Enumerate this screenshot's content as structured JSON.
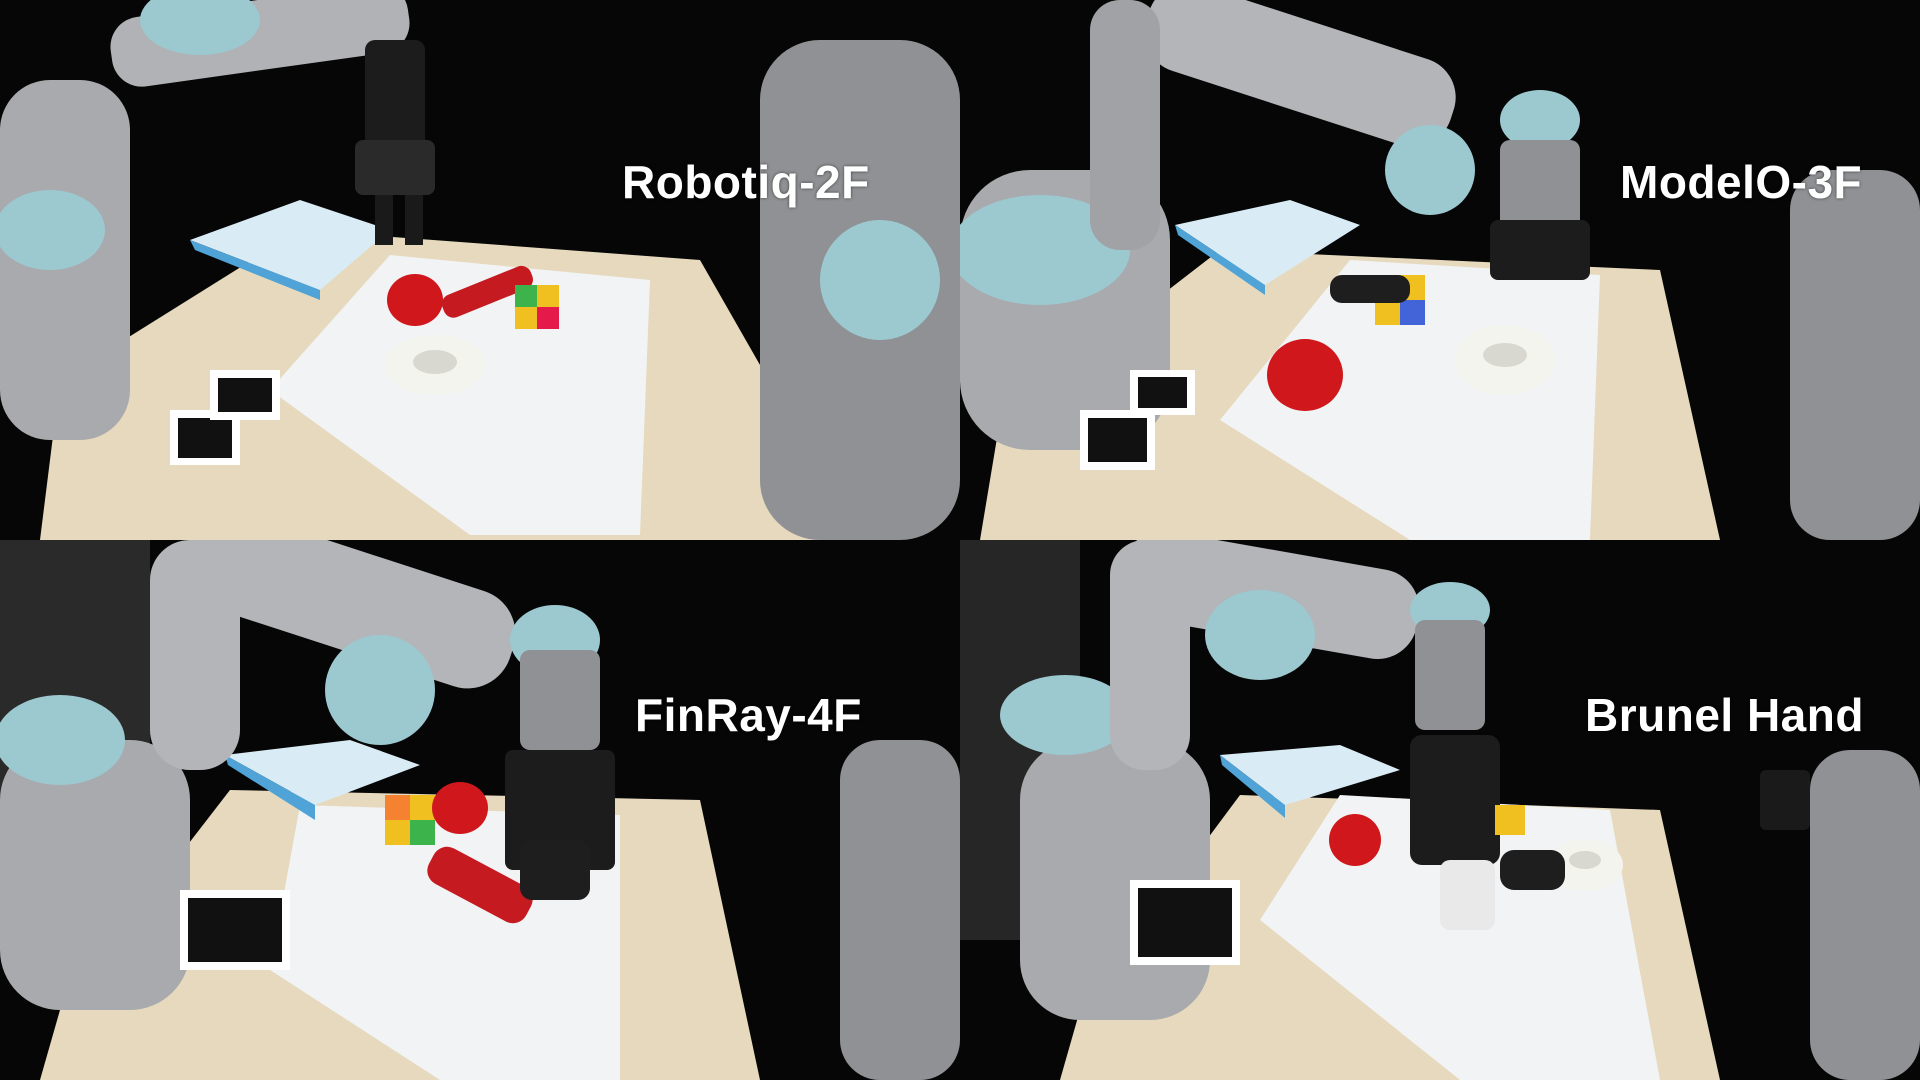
{
  "panels": [
    {
      "label": "Robotiq-2F"
    },
    {
      "label": "ModelO-3F"
    },
    {
      "label": "FinRay-4F"
    },
    {
      "label": "Brunel Hand"
    }
  ],
  "colors": {
    "background": "#050505",
    "table": "#e8dcc0",
    "tray": "#f2f4f6",
    "robot_gray": "#a7a9ac",
    "robot_joint_cap": "#9cc8d0",
    "red_object": "#d0181c"
  }
}
